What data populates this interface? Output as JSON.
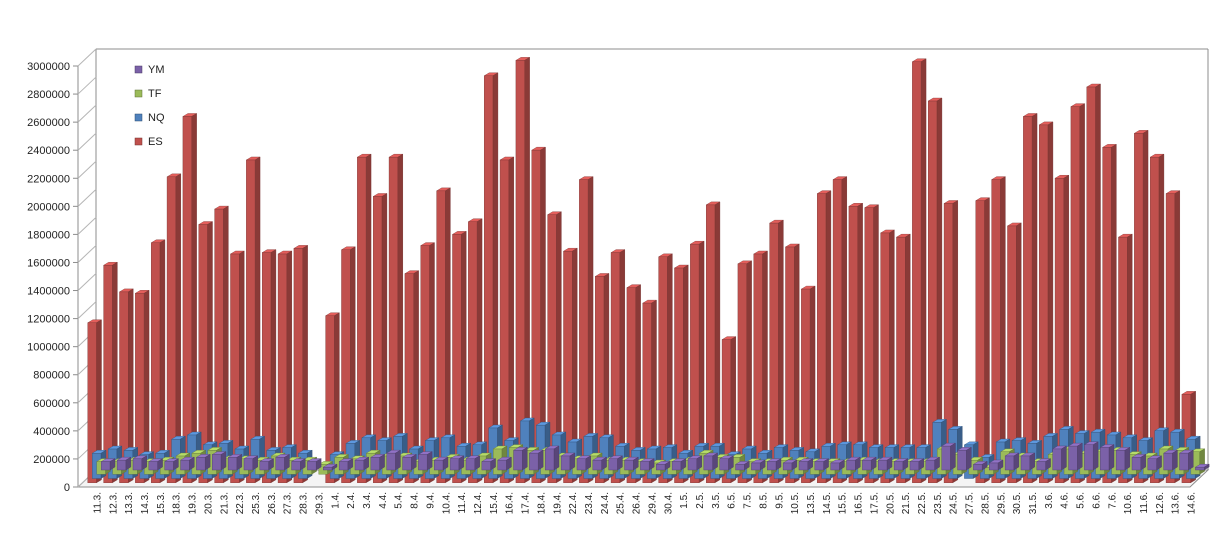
{
  "chart_data": {
    "type": "bar",
    "title": "",
    "xlabel": "",
    "ylabel": "",
    "ylim": [
      0,
      3000000
    ],
    "y_ticks": [
      0,
      200000,
      400000,
      600000,
      800000,
      1000000,
      1200000,
      1400000,
      1600000,
      1800000,
      2000000,
      2200000,
      2400000,
      2600000,
      2800000,
      3000000
    ],
    "grid": false,
    "legend_position": "top-left",
    "categories": [
      "11.3.",
      "12.3.",
      "13.3.",
      "14.3.",
      "15.3.",
      "18.3.",
      "19.3.",
      "20.3.",
      "21.3.",
      "22.3.",
      "25.3.",
      "26.3.",
      "27.3.",
      "28.3.",
      "29.3.",
      "1.4.",
      "2.4.",
      "3.4.",
      "4.4.",
      "5.4.",
      "8.4.",
      "9.4.",
      "10.4.",
      "11.4.",
      "12.4.",
      "15.4.",
      "16.4.",
      "17.4.",
      "18.4.",
      "19.4.",
      "22.4.",
      "23.4.",
      "24.4.",
      "25.4.",
      "26.4.",
      "29.4.",
      "30.4.",
      "1.5.",
      "2.5.",
      "3.5.",
      "6.5.",
      "7.5.",
      "8.5.",
      "9.5.",
      "10.5.",
      "13.5.",
      "14.5.",
      "15.5.",
      "16.5.",
      "17.5.",
      "20.5.",
      "21.5.",
      "22.5.",
      "23.5.",
      "24.5.",
      "27.5.",
      "28.5.",
      "29.5.",
      "30.5.",
      "31.5.",
      "3.6.",
      "4.6.",
      "5.6.",
      "6.6.",
      "7.6.",
      "10.6.",
      "11.6.",
      "12.6.",
      "13.6.",
      "14.6."
    ],
    "series": [
      {
        "name": "YM",
        "color": "#7b61a8",
        "values": [
          60000,
          70000,
          80000,
          60000,
          60000,
          70000,
          90000,
          110000,
          90000,
          80000,
          60000,
          90000,
          60000,
          60000,
          20000,
          60000,
          70000,
          90000,
          120000,
          90000,
          110000,
          70000,
          80000,
          80000,
          60000,
          70000,
          140000,
          120000,
          150000,
          100000,
          80000,
          70000,
          80000,
          70000,
          60000,
          40000,
          60000,
          80000,
          100000,
          80000,
          40000,
          50000,
          60000,
          50000,
          60000,
          60000,
          50000,
          70000,
          70000,
          70000,
          60000,
          60000,
          70000,
          170000,
          140000,
          40000,
          50000,
          100000,
          100000,
          60000,
          150000,
          170000,
          180000,
          160000,
          140000,
          90000,
          80000,
          120000,
          120000,
          20000
        ]
      },
      {
        "name": "TF",
        "color": "#9bbb59",
        "values": [
          90000,
          90000,
          100000,
          90000,
          100000,
          130000,
          150000,
          170000,
          110000,
          110000,
          100000,
          130000,
          100000,
          100000,
          70000,
          120000,
          110000,
          150000,
          130000,
          130000,
          90000,
          100000,
          120000,
          100000,
          130000,
          180000,
          190000,
          170000,
          170000,
          130000,
          110000,
          130000,
          100000,
          100000,
          90000,
          80000,
          90000,
          100000,
          150000,
          120000,
          120000,
          90000,
          90000,
          100000,
          100000,
          90000,
          90000,
          90000,
          100000,
          90000,
          90000,
          90000,
          90000,
          180000,
          140000,
          100000,
          50000,
          160000,
          130000,
          90000,
          140000,
          180000,
          150000,
          160000,
          170000,
          140000,
          130000,
          180000,
          170000,
          160000
        ]
      },
      {
        "name": "NQ",
        "color": "#4f81bd",
        "values": [
          180000,
          210000,
          200000,
          170000,
          180000,
          280000,
          310000,
          240000,
          250000,
          210000,
          280000,
          200000,
          220000,
          180000,
          0,
          170000,
          250000,
          290000,
          270000,
          300000,
          210000,
          270000,
          290000,
          230000,
          240000,
          360000,
          270000,
          410000,
          380000,
          310000,
          260000,
          300000,
          290000,
          230000,
          200000,
          210000,
          220000,
          180000,
          230000,
          230000,
          170000,
          210000,
          180000,
          220000,
          200000,
          190000,
          230000,
          240000,
          240000,
          220000,
          220000,
          220000,
          220000,
          400000,
          350000,
          240000,
          150000,
          260000,
          270000,
          250000,
          300000,
          350000,
          320000,
          330000,
          310000,
          290000,
          270000,
          340000,
          330000,
          280000
        ]
      },
      {
        "name": "ES",
        "color": "#c0504d",
        "values": [
          1140000,
          1550000,
          1360000,
          1350000,
          1710000,
          2180000,
          2610000,
          1840000,
          1950000,
          1630000,
          2300000,
          1640000,
          1630000,
          1670000,
          0,
          1190000,
          1660000,
          2320000,
          2040000,
          2320000,
          1490000,
          1690000,
          2080000,
          1770000,
          1860000,
          2900000,
          2300000,
          3010000,
          2370000,
          1910000,
          1650000,
          2160000,
          1470000,
          1640000,
          1390000,
          1280000,
          1610000,
          1530000,
          1700000,
          1980000,
          1020000,
          1560000,
          1630000,
          1850000,
          1680000,
          1380000,
          2060000,
          2160000,
          1970000,
          1960000,
          1780000,
          1750000,
          3000000,
          2720000,
          1990000,
          0,
          2010000,
          2160000,
          1830000,
          2610000,
          2550000,
          2170000,
          2680000,
          2820000,
          2390000,
          1750000,
          2490000,
          2320000,
          2060000,
          630000
        ]
      }
    ]
  }
}
